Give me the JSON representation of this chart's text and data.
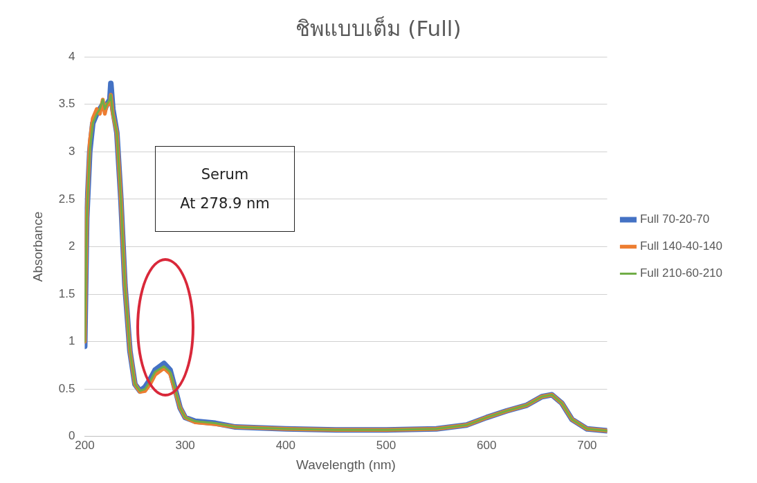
{
  "chart_data": {
    "type": "line",
    "title": "ชิพแบบเต็ม (Full)",
    "xlabel": "Wavelength (nm)",
    "ylabel": "Absorbance",
    "x": [
      200,
      202,
      205,
      208,
      212,
      215,
      218,
      220,
      222,
      225,
      226,
      228,
      232,
      236,
      240,
      245,
      250,
      255,
      260,
      265,
      270,
      278.9,
      285,
      290,
      295,
      300,
      310,
      330,
      350,
      400,
      450,
      500,
      550,
      580,
      600,
      620,
      640,
      655,
      665,
      675,
      685,
      700,
      720
    ],
    "series": [
      {
        "name": "Full 70-20-70",
        "color": "#4472c4",
        "values": [
          0.95,
          2.3,
          3.0,
          3.3,
          3.4,
          3.45,
          3.5,
          3.45,
          3.5,
          3.55,
          3.72,
          3.45,
          3.2,
          2.5,
          1.6,
          0.9,
          0.55,
          0.48,
          0.52,
          0.6,
          0.7,
          0.77,
          0.7,
          0.5,
          0.3,
          0.2,
          0.16,
          0.14,
          0.1,
          0.08,
          0.07,
          0.07,
          0.08,
          0.12,
          0.2,
          0.27,
          0.33,
          0.42,
          0.44,
          0.35,
          0.18,
          0.08,
          0.06
        ]
      },
      {
        "name": "Full 140-40-140",
        "color": "#ed7d31",
        "values": [
          1.0,
          2.3,
          3.1,
          3.35,
          3.45,
          3.4,
          3.55,
          3.4,
          3.5,
          3.5,
          3.6,
          3.4,
          3.2,
          2.5,
          1.6,
          0.9,
          0.55,
          0.47,
          0.48,
          0.55,
          0.65,
          0.72,
          0.66,
          0.48,
          0.3,
          0.2,
          0.15,
          0.13,
          0.1,
          0.08,
          0.07,
          0.07,
          0.08,
          0.12,
          0.2,
          0.27,
          0.33,
          0.42,
          0.44,
          0.35,
          0.18,
          0.08,
          0.06
        ]
      },
      {
        "name": "Full 210-60-210",
        "color": "#70ad47",
        "values": [
          1.0,
          2.3,
          3.0,
          3.3,
          3.4,
          3.45,
          3.55,
          3.45,
          3.5,
          3.55,
          3.6,
          3.4,
          3.2,
          2.5,
          1.6,
          0.9,
          0.55,
          0.48,
          0.5,
          0.58,
          0.68,
          0.74,
          0.68,
          0.5,
          0.3,
          0.2,
          0.16,
          0.14,
          0.1,
          0.08,
          0.07,
          0.07,
          0.08,
          0.12,
          0.2,
          0.27,
          0.33,
          0.42,
          0.44,
          0.35,
          0.18,
          0.08,
          0.06
        ]
      }
    ],
    "xlim": [
      200,
      720
    ],
    "xticks": [
      200,
      300,
      400,
      500,
      600,
      700
    ],
    "ylim": [
      0,
      4
    ],
    "yticks": [
      0,
      0.5,
      1,
      1.5,
      2,
      2.5,
      3,
      3.5,
      4
    ],
    "annotations": [
      "Serum\nAt 278.9 nm"
    ],
    "grid": "y",
    "legend": "right",
    "marker": "none",
    "line_style": "solid"
  }
}
